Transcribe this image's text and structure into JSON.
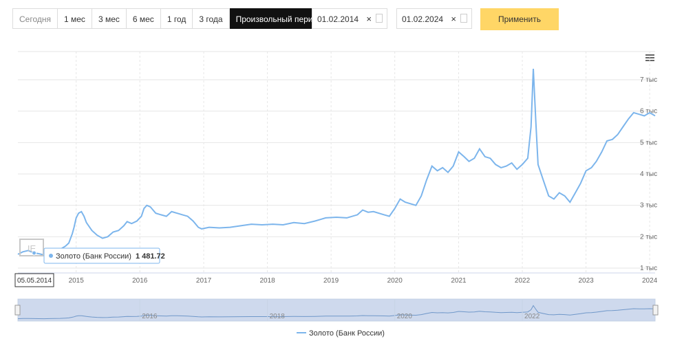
{
  "periods": {
    "today": "Сегодня",
    "m1": "1 мес",
    "m3": "3 мес",
    "m6": "6 мес",
    "y1": "1 год",
    "y3": "3 года",
    "custom": "Произвольный период"
  },
  "date_from": "01.02.2014",
  "date_to": "01.02.2024",
  "clear_glyph": "×",
  "apply_label": "Применить",
  "tooltip": {
    "date": "05.05.2014",
    "series": "Золото (Банк России)",
    "value": "1 481.72"
  },
  "chart_data": {
    "type": "line",
    "series": [
      {
        "name": "Золото (Банк России)",
        "color": "#7cb5ec",
        "points": [
          [
            "2014-02-01",
            1440
          ],
          [
            "2014-03-01",
            1520
          ],
          [
            "2014-04-01",
            1560
          ],
          [
            "2014-05-05",
            1482
          ],
          [
            "2014-06-01",
            1460
          ],
          [
            "2014-07-01",
            1420
          ],
          [
            "2014-08-01",
            1480
          ],
          [
            "2014-09-01",
            1520
          ],
          [
            "2014-10-01",
            1600
          ],
          [
            "2014-11-01",
            1700
          ],
          [
            "2014-11-20",
            1800
          ],
          [
            "2014-12-10",
            2100
          ],
          [
            "2014-12-20",
            2300
          ],
          [
            "2015-01-01",
            2600
          ],
          [
            "2015-01-15",
            2750
          ],
          [
            "2015-01-31",
            2800
          ],
          [
            "2015-02-15",
            2650
          ],
          [
            "2015-03-01",
            2450
          ],
          [
            "2015-04-01",
            2200
          ],
          [
            "2015-05-01",
            2050
          ],
          [
            "2015-06-01",
            1950
          ],
          [
            "2015-07-01",
            2000
          ],
          [
            "2015-08-01",
            2150
          ],
          [
            "2015-09-01",
            2200
          ],
          [
            "2015-10-01",
            2350
          ],
          [
            "2015-10-20",
            2480
          ],
          [
            "2015-11-15",
            2420
          ],
          [
            "2015-12-15",
            2500
          ],
          [
            "2016-01-10",
            2650
          ],
          [
            "2016-01-25",
            2900
          ],
          [
            "2016-02-10",
            3000
          ],
          [
            "2016-03-01",
            2950
          ],
          [
            "2016-04-01",
            2750
          ],
          [
            "2016-05-01",
            2700
          ],
          [
            "2016-06-01",
            2650
          ],
          [
            "2016-07-01",
            2800
          ],
          [
            "2016-08-01",
            2750
          ],
          [
            "2016-09-01",
            2700
          ],
          [
            "2016-10-01",
            2650
          ],
          [
            "2016-11-01",
            2500
          ],
          [
            "2016-12-01",
            2300
          ],
          [
            "2016-12-20",
            2250
          ],
          [
            "2017-02-01",
            2300
          ],
          [
            "2017-04-01",
            2280
          ],
          [
            "2017-06-01",
            2300
          ],
          [
            "2017-08-01",
            2350
          ],
          [
            "2017-10-01",
            2400
          ],
          [
            "2017-12-01",
            2380
          ],
          [
            "2018-02-01",
            2400
          ],
          [
            "2018-04-01",
            2380
          ],
          [
            "2018-06-01",
            2450
          ],
          [
            "2018-08-01",
            2420
          ],
          [
            "2018-10-01",
            2500
          ],
          [
            "2018-11-01",
            2550
          ],
          [
            "2018-12-01",
            2600
          ],
          [
            "2019-02-01",
            2620
          ],
          [
            "2019-04-01",
            2600
          ],
          [
            "2019-06-01",
            2700
          ],
          [
            "2019-07-01",
            2850
          ],
          [
            "2019-08-01",
            2780
          ],
          [
            "2019-09-01",
            2800
          ],
          [
            "2019-11-01",
            2700
          ],
          [
            "2019-12-01",
            2650
          ],
          [
            "2020-01-01",
            2900
          ],
          [
            "2020-02-01",
            3200
          ],
          [
            "2020-03-01",
            3100
          ],
          [
            "2020-04-01",
            3050
          ],
          [
            "2020-05-01",
            3000
          ],
          [
            "2020-06-01",
            3300
          ],
          [
            "2020-07-01",
            3800
          ],
          [
            "2020-08-01",
            4250
          ],
          [
            "2020-09-01",
            4100
          ],
          [
            "2020-10-01",
            4200
          ],
          [
            "2020-11-01",
            4050
          ],
          [
            "2020-12-01",
            4250
          ],
          [
            "2021-01-01",
            4700
          ],
          [
            "2021-02-01",
            4550
          ],
          [
            "2021-03-01",
            4400
          ],
          [
            "2021-04-01",
            4500
          ],
          [
            "2021-05-01",
            4800
          ],
          [
            "2021-06-01",
            4550
          ],
          [
            "2021-07-01",
            4500
          ],
          [
            "2021-08-01",
            4300
          ],
          [
            "2021-09-01",
            4200
          ],
          [
            "2021-10-01",
            4250
          ],
          [
            "2021-11-01",
            4350
          ],
          [
            "2021-12-01",
            4150
          ],
          [
            "2022-01-01",
            4300
          ],
          [
            "2022-02-01",
            4500
          ],
          [
            "2022-02-20",
            5500
          ],
          [
            "2022-03-05",
            7350
          ],
          [
            "2022-03-20",
            5600
          ],
          [
            "2022-04-01",
            4300
          ],
          [
            "2022-05-01",
            3800
          ],
          [
            "2022-06-01",
            3300
          ],
          [
            "2022-07-01",
            3200
          ],
          [
            "2022-08-01",
            3400
          ],
          [
            "2022-09-01",
            3300
          ],
          [
            "2022-10-01",
            3100
          ],
          [
            "2022-11-01",
            3400
          ],
          [
            "2022-12-01",
            3700
          ],
          [
            "2023-01-01",
            4100
          ],
          [
            "2023-02-01",
            4200
          ],
          [
            "2023-03-01",
            4400
          ],
          [
            "2023-04-01",
            4700
          ],
          [
            "2023-05-01",
            5050
          ],
          [
            "2023-06-01",
            5100
          ],
          [
            "2023-07-01",
            5250
          ],
          [
            "2023-08-01",
            5500
          ],
          [
            "2023-09-01",
            5750
          ],
          [
            "2023-10-01",
            5950
          ],
          [
            "2023-11-01",
            5900
          ],
          [
            "2023-12-01",
            5850
          ],
          [
            "2024-01-01",
            5950
          ],
          [
            "2024-02-01",
            5850
          ]
        ]
      }
    ],
    "x_ticks": [
      "2015",
      "2016",
      "2017",
      "2018",
      "2019",
      "2020",
      "2021",
      "2022",
      "2023",
      "2024"
    ],
    "y_ticks": [
      {
        "value": 1000,
        "label": "1 тыс"
      },
      {
        "value": 2000,
        "label": "2 тыс"
      },
      {
        "value": 3000,
        "label": "3 тыс"
      },
      {
        "value": 4000,
        "label": "4 тыс"
      },
      {
        "value": 5000,
        "label": "5 тыс"
      },
      {
        "value": 6000,
        "label": "6 тыс"
      },
      {
        "value": 7000,
        "label": "7 тыс"
      }
    ],
    "navigator_ticks": [
      "2016",
      "2018",
      "2020",
      "2022"
    ],
    "xlim": [
      "2014-02-01",
      "2024-02-01"
    ],
    "ylim": [
      1000,
      7000
    ],
    "grid": true,
    "legend": "bottom-center"
  }
}
